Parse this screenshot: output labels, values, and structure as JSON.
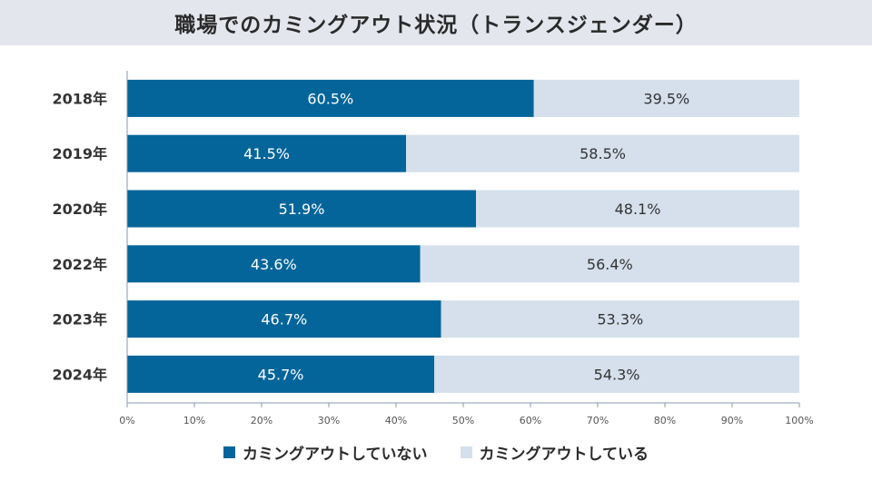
{
  "title": "職場でのカミングアウト状況（トランスジェンダー）",
  "colors": {
    "series1": "#04659a",
    "series2": "#d5e0ec",
    "axis": "#8a99ab",
    "label_dark": "#333333",
    "label_light": "#ffffff"
  },
  "chart_data": {
    "type": "bar",
    "orientation": "horizontal",
    "stacked": true,
    "categories": [
      "2018年",
      "2019年",
      "2020年",
      "2022年",
      "2023年",
      "2024年"
    ],
    "series": [
      {
        "name": "カミングアウトしていない",
        "values": [
          60.5,
          41.5,
          51.9,
          43.6,
          46.7,
          45.7
        ],
        "labels": [
          "60.5%",
          "41.5%",
          "51.9%",
          "43.6%",
          "46.7%",
          "45.7%"
        ]
      },
      {
        "name": "カミングアウトしている",
        "values": [
          39.5,
          58.5,
          48.1,
          56.4,
          53.3,
          54.3
        ],
        "labels": [
          "39.5%",
          "58.5%",
          "48.1%",
          "56.4%",
          "53.3%",
          "54.3%"
        ]
      }
    ],
    "xlim": [
      0,
      100
    ],
    "xticks": [
      "0%",
      "10%",
      "20%",
      "30%",
      "40%",
      "50%",
      "60%",
      "70%",
      "80%",
      "90%",
      "100%"
    ],
    "grid": false,
    "legend_position": "bottom"
  }
}
